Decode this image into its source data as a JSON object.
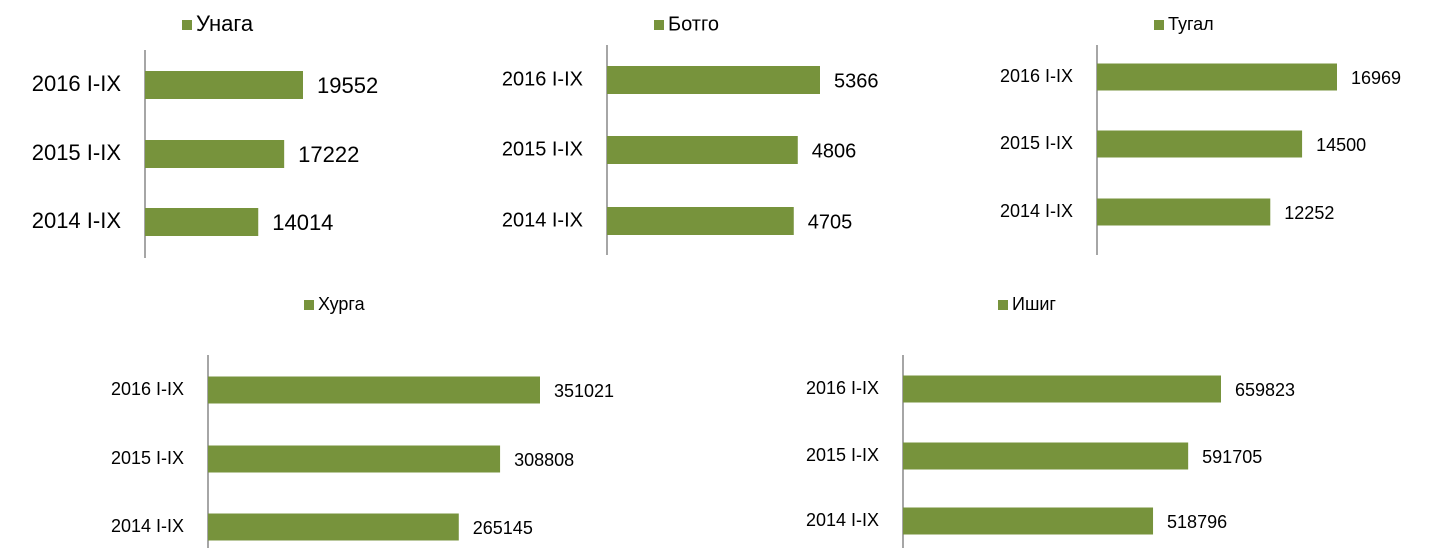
{
  "chart_data": [
    {
      "type": "bar",
      "categories": [
        "2016 I-IX",
        "2015 I-IX",
        "2014 I-IX"
      ],
      "series": [
        {
          "name": "Унага",
          "color": "#77933c",
          "values": [
            19552,
            17222,
            14014
          ]
        }
      ]
    },
    {
      "type": "bar",
      "categories": [
        "2016 I-IX",
        "2015 I-IX",
        "2014 I-IX"
      ],
      "series": [
        {
          "name": "Ботго",
          "color": "#77933c",
          "values": [
            5366,
            4806,
            4705
          ]
        }
      ]
    },
    {
      "type": "bar",
      "categories": [
        "2016 I-IX",
        "2015 I-IX",
        "2014 I-IX"
      ],
      "series": [
        {
          "name": "Тугал",
          "color": "#77933c",
          "values": [
            16969,
            14500,
            12252
          ]
        }
      ]
    },
    {
      "type": "bar",
      "categories": [
        "2016 I-IX",
        "2015 I-IX",
        "2014 I-IX"
      ],
      "series": [
        {
          "name": "Хурга",
          "color": "#77933c",
          "values": [
            351021,
            308808,
            265145
          ]
        }
      ]
    },
    {
      "type": "bar",
      "categories": [
        "2016 I-IX",
        "2015 I-IX",
        "2014 I-IX"
      ],
      "series": [
        {
          "name": "Ишиг",
          "color": "#77933c",
          "values": [
            659823,
            591705,
            518796
          ]
        }
      ]
    }
  ]
}
